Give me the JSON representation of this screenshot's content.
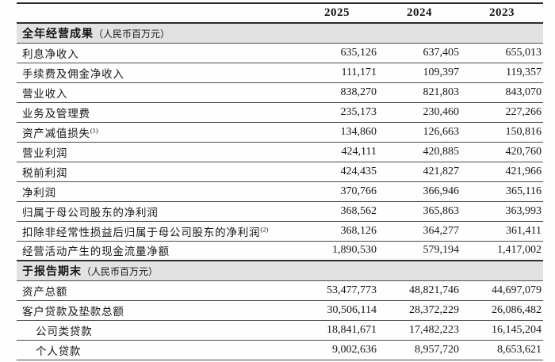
{
  "document": {
    "kind": "financial-summary-table",
    "currency_unit_note": "（人民币百万元）"
  },
  "colors": {
    "section_row_background": "#e2e2e2",
    "thick_rule": "#2a2a2a",
    "thin_rule": "#4a4a4a",
    "text": "#161616",
    "page_background": "#fefefe"
  },
  "header": {
    "years": [
      "2025",
      "2024",
      "2023"
    ]
  },
  "rows": [
    {
      "type": "section",
      "label": "全年经营成果",
      "unit": "（人民币百万元）"
    },
    {
      "type": "data",
      "label": "利息净收入",
      "v0": "635,126",
      "v1": "637,405",
      "v2": "655,013"
    },
    {
      "type": "data",
      "label": "手续费及佣金净收入",
      "v0": "111,171",
      "v1": "109,397",
      "v2": "119,357"
    },
    {
      "type": "data",
      "label": "营业收入",
      "v0": "838,270",
      "v1": "821,803",
      "v2": "843,070"
    },
    {
      "type": "data",
      "label": "业务及管理费",
      "v0": "235,173",
      "v1": "230,460",
      "v2": "227,266"
    },
    {
      "type": "data",
      "label": "资产减值损失",
      "sup": "(1)",
      "v0": "134,860",
      "v1": "126,663",
      "v2": "150,816"
    },
    {
      "type": "data",
      "label": "营业利润",
      "v0": "424,111",
      "v1": "420,885",
      "v2": "420,760"
    },
    {
      "type": "data",
      "label": "税前利润",
      "v0": "424,435",
      "v1": "421,827",
      "v2": "421,966"
    },
    {
      "type": "data",
      "label": "净利润",
      "v0": "370,766",
      "v1": "366,946",
      "v2": "365,116"
    },
    {
      "type": "data",
      "label": "归属于母公司股东的净利润",
      "v0": "368,562",
      "v1": "365,863",
      "v2": "363,993"
    },
    {
      "type": "data",
      "label": "扣除非经常性损益后归属于母公司股东的净利润",
      "sup": "(2)",
      "v0": "368,126",
      "v1": "364,277",
      "v2": "361,411"
    },
    {
      "type": "data",
      "label": "经营活动产生的现金流量净额",
      "v0": "1,890,530",
      "v1": "579,194",
      "v2": "1,417,002"
    },
    {
      "type": "section",
      "label": "于报告期末",
      "unit": "（人民币百万元）"
    },
    {
      "type": "data",
      "label": "资产总额",
      "v0": "53,477,773",
      "v1": "48,821,746",
      "v2": "44,697,079"
    },
    {
      "type": "data",
      "label": "客户贷款及垫款总额",
      "v0": "30,506,114",
      "v1": "28,372,229",
      "v2": "26,086,482"
    },
    {
      "type": "data",
      "label": "公司类贷款",
      "indent": true,
      "v0": "18,841,671",
      "v1": "17,482,223",
      "v2": "16,145,204"
    },
    {
      "type": "data",
      "label": "个人贷款",
      "indent": true,
      "v0": "9,002,636",
      "v1": "8,957,720",
      "v2": "8,653,621"
    }
  ]
}
